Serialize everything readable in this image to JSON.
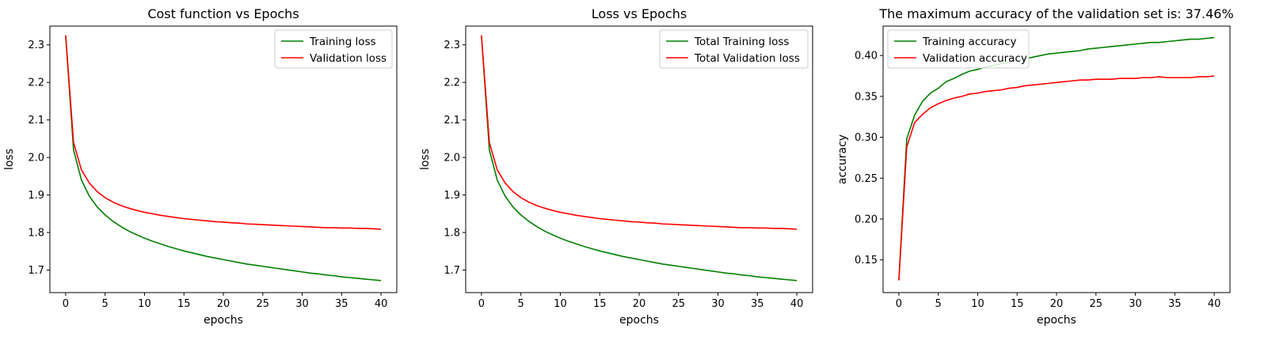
{
  "chart_data": [
    {
      "type": "line",
      "title": "Cost function vs Epochs",
      "xlabel": "epochs",
      "ylabel": "loss",
      "xlim": [
        -2,
        42
      ],
      "ylim": [
        1.64,
        2.35
      ],
      "xticks": [
        0,
        5,
        10,
        15,
        20,
        25,
        30,
        35,
        40
      ],
      "yticks": [
        1.7,
        1.8,
        1.9,
        2.0,
        2.1,
        2.2,
        2.3
      ],
      "ytick_decimals": 1,
      "legend_position": "upper-right",
      "grid": false,
      "series": [
        {
          "name": "Training loss",
          "color": "#008000",
          "x": [
            0,
            1,
            2,
            3,
            4,
            5,
            6,
            7,
            8,
            9,
            10,
            11,
            12,
            13,
            14,
            15,
            16,
            17,
            18,
            19,
            20,
            21,
            22,
            23,
            24,
            25,
            26,
            27,
            28,
            29,
            30,
            31,
            32,
            33,
            34,
            35,
            36,
            37,
            38,
            39,
            40
          ],
          "y": [
            2.325,
            2.02,
            1.94,
            1.897,
            1.868,
            1.847,
            1.83,
            1.816,
            1.804,
            1.794,
            1.785,
            1.777,
            1.77,
            1.763,
            1.757,
            1.751,
            1.746,
            1.741,
            1.736,
            1.732,
            1.728,
            1.724,
            1.72,
            1.716,
            1.713,
            1.71,
            1.707,
            1.704,
            1.701,
            1.698,
            1.695,
            1.692,
            1.69,
            1.687,
            1.685,
            1.682,
            1.68,
            1.678,
            1.676,
            1.674,
            1.672
          ]
        },
        {
          "name": "Validation loss",
          "color": "#ff0000",
          "x": [
            0,
            1,
            2,
            3,
            4,
            5,
            6,
            7,
            8,
            9,
            10,
            11,
            12,
            13,
            14,
            15,
            16,
            17,
            18,
            19,
            20,
            21,
            22,
            23,
            24,
            25,
            26,
            27,
            28,
            29,
            30,
            31,
            32,
            33,
            34,
            35,
            36,
            37,
            38,
            39,
            40
          ],
          "y": [
            2.325,
            2.04,
            1.967,
            1.932,
            1.909,
            1.893,
            1.881,
            1.872,
            1.865,
            1.859,
            1.854,
            1.85,
            1.846,
            1.843,
            1.84,
            1.837,
            1.835,
            1.833,
            1.831,
            1.829,
            1.828,
            1.826,
            1.825,
            1.823,
            1.822,
            1.821,
            1.82,
            1.819,
            1.818,
            1.817,
            1.816,
            1.815,
            1.814,
            1.813,
            1.813,
            1.812,
            1.812,
            1.811,
            1.811,
            1.81,
            1.809
          ]
        }
      ]
    },
    {
      "type": "line",
      "title": "Loss vs Epochs",
      "xlabel": "epochs",
      "ylabel": "loss",
      "xlim": [
        -2,
        42
      ],
      "ylim": [
        1.64,
        2.35
      ],
      "xticks": [
        0,
        5,
        10,
        15,
        20,
        25,
        30,
        35,
        40
      ],
      "yticks": [
        1.7,
        1.8,
        1.9,
        2.0,
        2.1,
        2.2,
        2.3
      ],
      "ytick_decimals": 1,
      "legend_position": "upper-right",
      "grid": false,
      "series": [
        {
          "name": "Total Training loss",
          "color": "#008000",
          "x": [
            0,
            1,
            2,
            3,
            4,
            5,
            6,
            7,
            8,
            9,
            10,
            11,
            12,
            13,
            14,
            15,
            16,
            17,
            18,
            19,
            20,
            21,
            22,
            23,
            24,
            25,
            26,
            27,
            28,
            29,
            30,
            31,
            32,
            33,
            34,
            35,
            36,
            37,
            38,
            39,
            40
          ],
          "y": [
            2.325,
            2.02,
            1.94,
            1.897,
            1.868,
            1.847,
            1.83,
            1.816,
            1.804,
            1.794,
            1.785,
            1.777,
            1.77,
            1.763,
            1.757,
            1.751,
            1.746,
            1.741,
            1.736,
            1.732,
            1.728,
            1.724,
            1.72,
            1.716,
            1.713,
            1.71,
            1.707,
            1.704,
            1.701,
            1.698,
            1.695,
            1.692,
            1.69,
            1.687,
            1.685,
            1.682,
            1.68,
            1.678,
            1.676,
            1.674,
            1.672
          ]
        },
        {
          "name": "Total Validation loss",
          "color": "#ff0000",
          "x": [
            0,
            1,
            2,
            3,
            4,
            5,
            6,
            7,
            8,
            9,
            10,
            11,
            12,
            13,
            14,
            15,
            16,
            17,
            18,
            19,
            20,
            21,
            22,
            23,
            24,
            25,
            26,
            27,
            28,
            29,
            30,
            31,
            32,
            33,
            34,
            35,
            36,
            37,
            38,
            39,
            40
          ],
          "y": [
            2.325,
            2.04,
            1.967,
            1.932,
            1.909,
            1.893,
            1.881,
            1.872,
            1.865,
            1.859,
            1.854,
            1.85,
            1.846,
            1.843,
            1.84,
            1.837,
            1.835,
            1.833,
            1.831,
            1.829,
            1.828,
            1.826,
            1.825,
            1.823,
            1.822,
            1.821,
            1.82,
            1.819,
            1.818,
            1.817,
            1.816,
            1.815,
            1.814,
            1.813,
            1.813,
            1.812,
            1.812,
            1.811,
            1.811,
            1.81,
            1.809
          ]
        }
      ]
    },
    {
      "type": "line",
      "title": "The maximum accuracy of the validation set is: 37.46%",
      "xlabel": "epochs",
      "ylabel": "accuracy",
      "xlim": [
        -2,
        42
      ],
      "ylim": [
        0.11,
        0.436
      ],
      "xticks": [
        0,
        5,
        10,
        15,
        20,
        25,
        30,
        35,
        40
      ],
      "yticks": [
        0.15,
        0.2,
        0.25,
        0.3,
        0.35,
        0.4
      ],
      "ytick_decimals": 2,
      "legend_position": "upper-left",
      "grid": false,
      "series": [
        {
          "name": "Training accuracy",
          "color": "#008000",
          "x": [
            0,
            1,
            2,
            3,
            4,
            5,
            6,
            7,
            8,
            9,
            10,
            11,
            12,
            13,
            14,
            15,
            16,
            17,
            18,
            19,
            20,
            21,
            22,
            23,
            24,
            25,
            26,
            27,
            28,
            29,
            30,
            31,
            32,
            33,
            34,
            35,
            36,
            37,
            38,
            39,
            40
          ],
          "y": [
            0.125,
            0.298,
            0.327,
            0.344,
            0.354,
            0.36,
            0.368,
            0.372,
            0.377,
            0.381,
            0.383,
            0.386,
            0.388,
            0.39,
            0.392,
            0.394,
            0.396,
            0.398,
            0.4,
            0.402,
            0.403,
            0.404,
            0.405,
            0.406,
            0.408,
            0.409,
            0.41,
            0.411,
            0.412,
            0.413,
            0.414,
            0.415,
            0.416,
            0.416,
            0.417,
            0.418,
            0.419,
            0.42,
            0.42,
            0.421,
            0.422
          ]
        },
        {
          "name": "Validation accuracy",
          "color": "#ff0000",
          "x": [
            0,
            1,
            2,
            3,
            4,
            5,
            6,
            7,
            8,
            9,
            10,
            11,
            12,
            13,
            14,
            15,
            16,
            17,
            18,
            19,
            20,
            21,
            22,
            23,
            24,
            25,
            26,
            27,
            28,
            29,
            30,
            31,
            32,
            33,
            34,
            35,
            36,
            37,
            38,
            39,
            40
          ],
          "y": [
            0.125,
            0.288,
            0.318,
            0.328,
            0.336,
            0.341,
            0.345,
            0.348,
            0.35,
            0.353,
            0.354,
            0.356,
            0.357,
            0.358,
            0.36,
            0.361,
            0.363,
            0.364,
            0.365,
            0.366,
            0.367,
            0.368,
            0.369,
            0.37,
            0.37,
            0.371,
            0.371,
            0.371,
            0.372,
            0.372,
            0.372,
            0.373,
            0.373,
            0.374,
            0.373,
            0.373,
            0.373,
            0.373,
            0.374,
            0.374,
            0.375
          ]
        }
      ]
    }
  ]
}
